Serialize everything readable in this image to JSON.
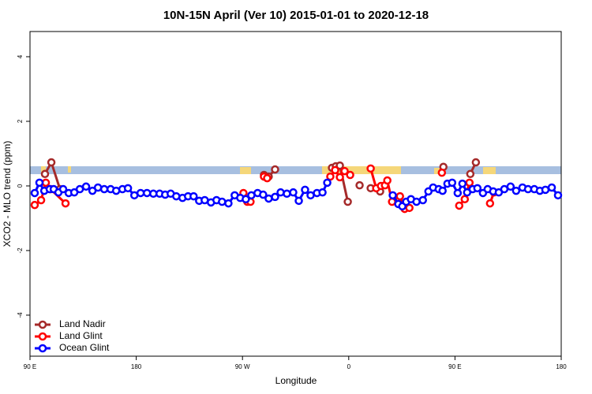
{
  "chart_data": {
    "type": "line",
    "title": "10N-15N April (Ver 10)   2015-01-01 to 2020-12-18",
    "x_label": "Longitude",
    "y_label": "XCO2 - MLO trend (ppm)",
    "xlim": [
      90,
      540
    ],
    "ylim": [
      -5.27,
      4.78
    ],
    "xticks": [
      {
        "value": 90,
        "label": "90 E"
      },
      {
        "value": 180,
        "label": "180"
      },
      {
        "value": 270,
        "label": "90 W"
      },
      {
        "value": 360,
        "label": "0"
      },
      {
        "value": 450,
        "label": "90 E"
      },
      {
        "value": 540,
        "label": "180"
      }
    ],
    "yticks": [
      -4,
      -2,
      0,
      2,
      4
    ],
    "legend": "bottomleft",
    "series": [
      {
        "name": "Land Nadir",
        "color": "#a52a2a",
        "x": [
          102.7,
          108.1,
          115.4,
          null,
          288.2,
          292.2,
          297.6,
          null,
          345.8,
          349.1,
          352.5,
          359.2,
          null,
          369.2,
          null,
          378.6,
          386.6,
          null,
          440.2,
          null,
          463.0,
          467.7
        ],
        "values": [
          0.37,
          0.73,
          -0.1,
          null,
          0.34,
          0.29,
          0.51,
          null,
          0.56,
          0.61,
          0.63,
          -0.49,
          null,
          0.02,
          null,
          -0.07,
          -0.17,
          null,
          0.59,
          null,
          0.37,
          0.73
        ]
      },
      {
        "name": "Land Glint",
        "color": "#ff0000",
        "x": [
          94.0,
          99.4,
          103.4,
          107.4,
          120.1,
          null,
          270.8,
          274.1,
          276.8,
          null,
          288.2,
          290.9,
          null,
          344.4,
          348.5,
          352.5,
          356.5,
          361.2,
          null,
          378.6,
          383.3,
          387.3,
          390.7,
          392.7,
          396.7,
          403.4,
          407.4,
          411.4,
          null,
          438.9,
          null,
          453.6,
          458.3,
          462.3,
          null,
          479.7,
          483.0
        ],
        "values": [
          -0.59,
          -0.44,
          0.1,
          -0.1,
          -0.54,
          null,
          -0.22,
          -0.49,
          -0.49,
          null,
          0.29,
          0.24,
          null,
          0.29,
          0.49,
          0.27,
          0.46,
          0.34,
          null,
          0.54,
          -0.07,
          0,
          0.02,
          0.17,
          -0.49,
          -0.32,
          -0.71,
          -0.68,
          null,
          0.41,
          null,
          -0.61,
          -0.41,
          0.1,
          null,
          -0.54,
          -0.2
        ]
      },
      {
        "name": "Ocean Glint",
        "color": "#0000ff",
        "x": [
          94.0,
          98.0,
          102.1,
          106.7,
          110.1,
          114.1,
          118.1,
          122.8,
          127.5,
          132.2,
          137.5,
          142.9,
          147.6,
          152.9,
          158.3,
          163.0,
          168.3,
          173.0,
          178.4,
          183.7,
          189.1,
          194.5,
          199.8,
          204.5,
          209.2,
          213.9,
          219.2,
          223.9,
          228.6,
          233.3,
          238.0,
          243.3,
          248.0,
          252.7,
          258.1,
          263.4,
          268.1,
          272.8,
          277.5,
          282.8,
          287.5,
          292.2,
          297.6,
          302.3,
          307.6,
          313.0,
          317.7,
          323.0,
          327.7,
          333.1,
          337.8,
          341.8,
          null,
          397.3,
          402.0,
          405.4,
          408.7,
          412.7,
          417.4,
          422.8,
          427.5,
          431.5,
          436.2,
          439.5,
          443.6,
          447.6,
          452.3,
          456.3,
          460.3,
          465.0,
          469.0,
          473.7,
          477.7,
          482.4,
          487.1,
          491.8,
          497.1,
          501.8,
          507.2,
          511.9,
          517.2,
          521.9,
          526.6,
          532.0,
          537.3
        ],
        "values": [
          -0.22,
          0.1,
          -0.15,
          -0.1,
          -0.1,
          -0.2,
          -0.1,
          -0.22,
          -0.2,
          -0.1,
          -0.02,
          -0.15,
          -0.05,
          -0.1,
          -0.1,
          -0.15,
          -0.1,
          -0.07,
          -0.29,
          -0.22,
          -0.22,
          -0.24,
          -0.24,
          -0.27,
          -0.24,
          -0.32,
          -0.37,
          -0.32,
          -0.32,
          -0.46,
          -0.44,
          -0.51,
          -0.44,
          -0.49,
          -0.54,
          -0.29,
          -0.37,
          -0.41,
          -0.29,
          -0.22,
          -0.27,
          -0.39,
          -0.34,
          -0.2,
          -0.24,
          -0.2,
          -0.46,
          -0.12,
          -0.29,
          -0.22,
          -0.2,
          0.1,
          null,
          -0.29,
          -0.56,
          -0.63,
          -0.49,
          -0.41,
          -0.49,
          -0.44,
          -0.17,
          -0.05,
          -0.1,
          -0.15,
          0.07,
          0.1,
          -0.22,
          0.07,
          -0.2,
          -0.1,
          -0.07,
          -0.22,
          -0.1,
          -0.17,
          -0.2,
          -0.1,
          -0.02,
          -0.15,
          -0.05,
          -0.1,
          -0.1,
          -0.15,
          -0.12,
          -0.05,
          -0.29
        ]
      }
    ]
  }
}
